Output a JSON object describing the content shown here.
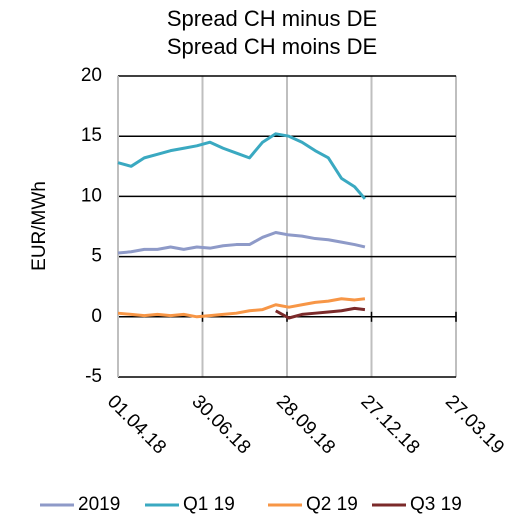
{
  "chart_data": {
    "type": "line",
    "title": "Spread CH minus DE",
    "subtitle": "Spread CH moins DE",
    "y_label": "EUR/MWh",
    "x": [
      "01.04.18",
      "15.04.18",
      "29.04.18",
      "13.05.18",
      "27.05.18",
      "10.06.18",
      "24.06.18",
      "08.07.18",
      "22.07.18",
      "05.08.18",
      "19.08.18",
      "02.09.18",
      "16.09.18",
      "30.09.18",
      "14.10.18",
      "28.10.18",
      "11.11.18",
      "25.11.18",
      "09.12.18",
      "20.12.18"
    ],
    "series": [
      {
        "name": "2019",
        "color": "#8e9ac8",
        "values": [
          5.3,
          5.4,
          5.6,
          5.6,
          5.8,
          5.6,
          5.8,
          5.7,
          5.9,
          6,
          6,
          6.6,
          7,
          6.8,
          6.7,
          6.5,
          6.4,
          6.2,
          6,
          5.8
        ]
      },
      {
        "name": "Q1 19",
        "color": "#3aa9c1",
        "values": [
          12.8,
          12.5,
          13.2,
          13.5,
          13.8,
          14,
          14.2,
          14.5,
          14,
          13.6,
          13.2,
          14.5,
          15.2,
          15,
          14.5,
          13.8,
          13.2,
          11.5,
          10.8,
          9.8
        ]
      },
      {
        "name": "Q2 19",
        "color": "#f79646",
        "values": [
          0.3,
          0.2,
          0.1,
          0.2,
          0.1,
          0.2,
          0,
          0.1,
          0.2,
          0.3,
          0.5,
          0.6,
          1,
          0.8,
          1,
          1.2,
          1.3,
          1.5,
          1.4,
          1.5
        ]
      },
      {
        "name": "Q3 19",
        "color": "#7b2a2a",
        "values": [
          null,
          null,
          null,
          null,
          null,
          null,
          null,
          null,
          null,
          null,
          null,
          null,
          0.5,
          -0.1,
          0.2,
          0.3,
          0.4,
          0.5,
          0.7,
          0.6
        ]
      }
    ],
    "xlim": [
      "01.04.18",
      "27.03.19"
    ],
    "xticks": [
      "01.04.18",
      "30.06.18",
      "28.09.18",
      "27.12.18",
      "27.03.19"
    ],
    "ylim": [
      -5,
      20
    ],
    "yticks": [
      -5,
      0,
      5,
      10,
      15,
      20
    ],
    "grid": true,
    "legend": "bottom"
  }
}
